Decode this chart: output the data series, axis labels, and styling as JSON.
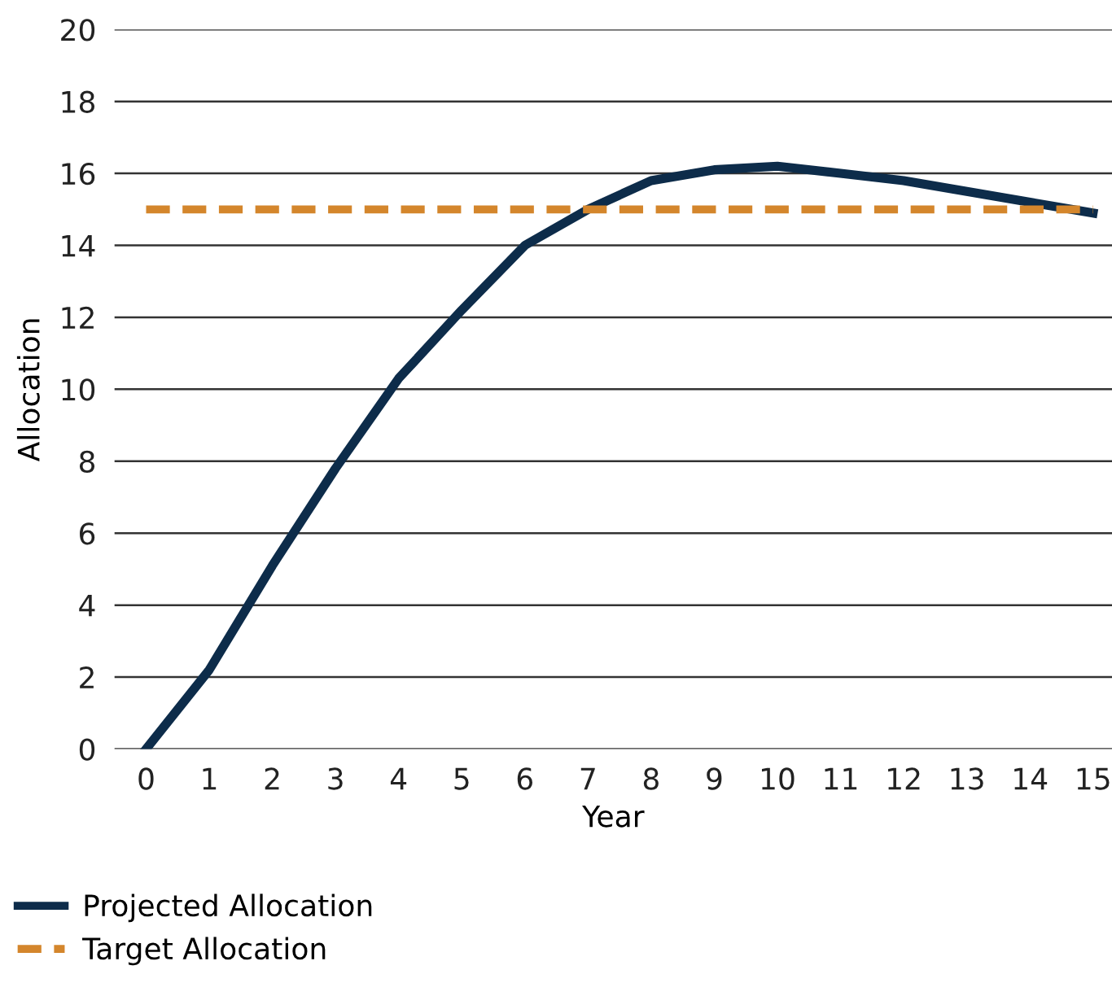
{
  "chart_data": {
    "type": "line",
    "xlabel": "Year",
    "ylabel": "Allocation",
    "x": [
      0,
      1,
      2,
      3,
      4,
      5,
      6,
      7,
      8,
      9,
      10,
      11,
      12,
      13,
      14,
      15
    ],
    "series": [
      {
        "name": "Projected Allocation",
        "color": "#0d2c4a",
        "line_style": "solid",
        "values": [
          0,
          2.2,
          5.1,
          7.8,
          10.3,
          12.2,
          14.0,
          15.0,
          15.8,
          16.1,
          16.2,
          16.0,
          15.8,
          15.5,
          15.2,
          14.9
        ]
      },
      {
        "name": "Target Allocation",
        "color": "#d4862c",
        "line_style": "dashed",
        "values": [
          15,
          15,
          15,
          15,
          15,
          15,
          15,
          15,
          15,
          15,
          15,
          15,
          15,
          15,
          15,
          15
        ]
      }
    ],
    "xlim": [
      -0.5,
      15.3
    ],
    "xticks": [
      0,
      1,
      2,
      3,
      4,
      5,
      6,
      7,
      8,
      9,
      10,
      11,
      12,
      13,
      14,
      15
    ],
    "ylim": [
      0,
      20
    ],
    "yticks": [
      0,
      2,
      4,
      6,
      8,
      10,
      12,
      14,
      16,
      18,
      20
    ],
    "grid": "y",
    "legend": "bottom left",
    "marker": "none"
  }
}
